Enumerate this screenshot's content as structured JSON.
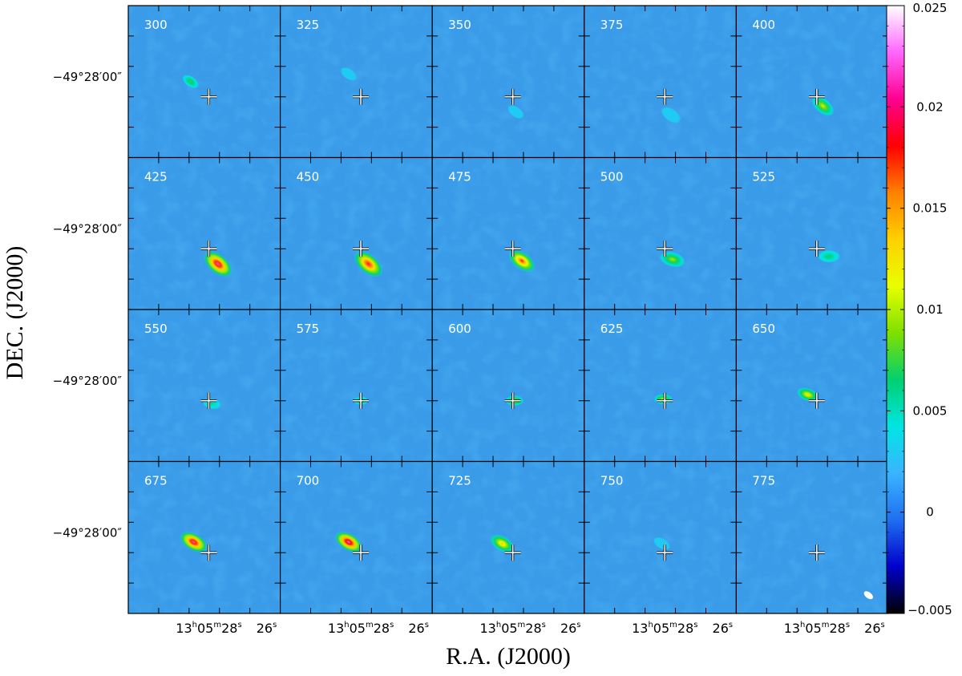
{
  "chart_data": {
    "type": "heatmap",
    "description_layout": "channel map grid",
    "xlabel": "R.A. (J2000)",
    "ylabel": "DEC. (J2000)",
    "rows": 4,
    "cols": 5,
    "panels": [
      {
        "label": "300",
        "blobs": [
          {
            "dx": -0.12,
            "dy": -0.1,
            "peak": 0.008,
            "size": 0.05,
            "angle": -35
          }
        ]
      },
      {
        "label": "325",
        "blobs": [
          {
            "dx": -0.08,
            "dy": -0.15,
            "peak": 0.003,
            "size": 0.05,
            "angle": -35
          }
        ]
      },
      {
        "label": "350",
        "blobs": [
          {
            "dx": 0.02,
            "dy": 0.1,
            "peak": 0.003,
            "size": 0.05,
            "angle": -35
          }
        ]
      },
      {
        "label": "375",
        "blobs": [
          {
            "dx": 0.04,
            "dy": 0.12,
            "peak": 0.003,
            "size": 0.06,
            "angle": -35
          }
        ]
      },
      {
        "label": "400",
        "blobs": [
          {
            "dx": 0.04,
            "dy": 0.06,
            "peak": 0.011,
            "size": 0.07,
            "angle": -40
          }
        ]
      },
      {
        "label": "425",
        "blobs": [
          {
            "dx": 0.06,
            "dy": 0.1,
            "peak": 0.022,
            "size": 0.09,
            "angle": -40
          }
        ]
      },
      {
        "label": "450",
        "blobs": [
          {
            "dx": 0.05,
            "dy": 0.1,
            "peak": 0.02,
            "size": 0.09,
            "angle": -40
          }
        ]
      },
      {
        "label": "475",
        "blobs": [
          {
            "dx": 0.06,
            "dy": 0.08,
            "peak": 0.018,
            "size": 0.08,
            "angle": -35
          }
        ]
      },
      {
        "label": "500",
        "blobs": [
          {
            "dx": 0.05,
            "dy": 0.07,
            "peak": 0.01,
            "size": 0.07,
            "angle": -15
          }
        ]
      },
      {
        "label": "525",
        "blobs": [
          {
            "dx": 0.08,
            "dy": 0.05,
            "peak": 0.007,
            "size": 0.06,
            "angle": 0
          }
        ]
      },
      {
        "label": "550",
        "blobs": [
          {
            "dx": 0.02,
            "dy": 0.02,
            "peak": 0.006,
            "size": 0.05,
            "angle": -10
          }
        ]
      },
      {
        "label": "575",
        "blobs": [
          {
            "dx": 0.0,
            "dy": 0.0,
            "peak": 0.009,
            "size": 0.04,
            "angle": 0
          }
        ]
      },
      {
        "label": "600",
        "blobs": [
          {
            "dx": 0.01,
            "dy": 0.0,
            "peak": 0.011,
            "size": 0.05,
            "angle": 0
          }
        ]
      },
      {
        "label": "625",
        "blobs": [
          {
            "dx": -0.01,
            "dy": -0.01,
            "peak": 0.011,
            "size": 0.05,
            "angle": 0
          }
        ]
      },
      {
        "label": "650",
        "blobs": [
          {
            "dx": -0.06,
            "dy": -0.04,
            "peak": 0.013,
            "size": 0.06,
            "angle": -20
          }
        ]
      },
      {
        "label": "675",
        "blobs": [
          {
            "dx": -0.1,
            "dy": -0.07,
            "peak": 0.022,
            "size": 0.08,
            "angle": -30
          }
        ]
      },
      {
        "label": "700",
        "blobs": [
          {
            "dx": -0.08,
            "dy": -0.07,
            "peak": 0.023,
            "size": 0.08,
            "angle": -30
          }
        ]
      },
      {
        "label": "725",
        "blobs": [
          {
            "dx": -0.07,
            "dy": -0.06,
            "peak": 0.014,
            "size": 0.07,
            "angle": -30
          }
        ]
      },
      {
        "label": "750",
        "blobs": [
          {
            "dx": -0.02,
            "dy": -0.06,
            "peak": 0.003,
            "size": 0.05,
            "angle": -30
          }
        ]
      },
      {
        "label": "775",
        "blobs": []
      }
    ],
    "cross_position": {
      "ra": "13h05m27.9s",
      "dec": "-49°28'06\""
    },
    "ytick_label": "−49°28′00″",
    "xticks": [
      {
        "h": "13",
        "m": "05",
        "s": "28"
      },
      {
        "s": "26"
      }
    ],
    "colorbar": {
      "min": -0.005,
      "max": 0.025,
      "ticks": [
        "0.025",
        "0.02",
        "0.015",
        "0.01",
        "0.005",
        "0",
        "−0.005"
      ],
      "tick_values": [
        0.025,
        0.02,
        0.015,
        0.01,
        0.005,
        0,
        -0.005
      ],
      "colormap": [
        "#000000",
        "#0000cc",
        "#1e6ff0",
        "#3ab4ff",
        "#00e5e5",
        "#00d070",
        "#7fe000",
        "#e8ff00",
        "#ffd000",
        "#ff8000",
        "#ff0000",
        "#ff0090",
        "#ff66ff",
        "#ffffff"
      ]
    },
    "background_color": "#3a9be8",
    "beam_shown": true
  }
}
